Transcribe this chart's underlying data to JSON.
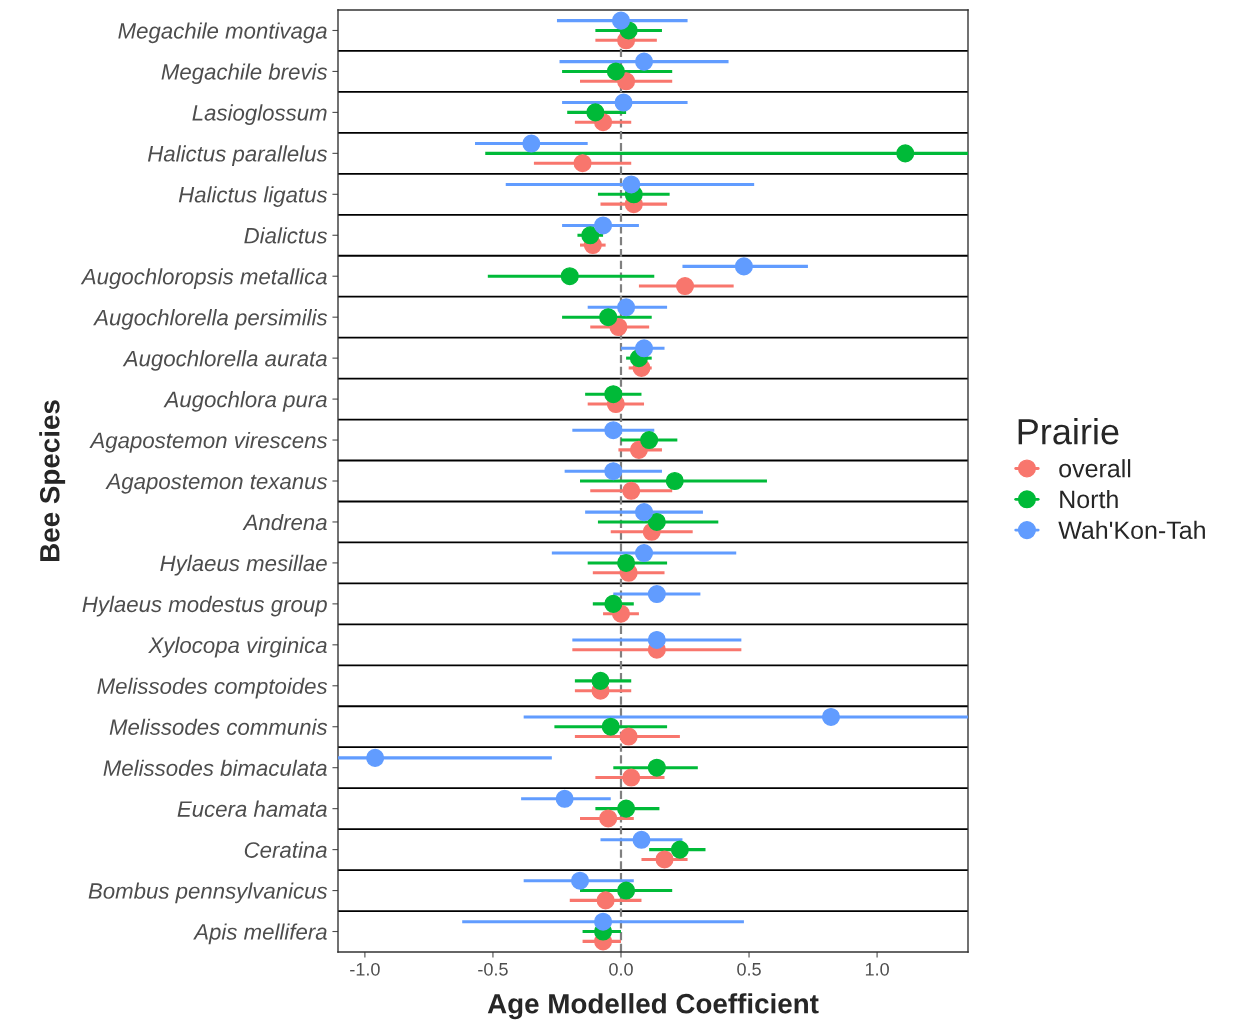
{
  "chart_data": {
    "type": "scatter",
    "orientation": "horizontal",
    "xlabel": "Age Modelled Coefficient",
    "ylabel": "Bee Species",
    "legend_title": "Prairie",
    "legend": "right",
    "marker": "circle",
    "categories": [
      "Megachile montivaga",
      "Megachile brevis",
      "Lasioglossum",
      "Halictus parallelus",
      "Halictus ligatus",
      "Dialictus",
      "Augochloropsis metallica",
      "Augochlorella persimilis",
      "Augochlorella aurata",
      "Augochlora pura",
      "Agapostemon virescens",
      "Agapostemon texanus",
      "Andrena",
      "Hylaeus mesillae",
      "Hylaeus modestus group",
      "Xylocopa virginica",
      "Melissodes comptoides",
      "Melissodes communis",
      "Melissodes bimaculata",
      "Eucera hamata",
      "Ceratina",
      "Bombus pennsylvanicus",
      "Apis mellifera"
    ],
    "xlim": [
      -1.105,
      1.355
    ],
    "xticks": [
      {
        "value": -1.0,
        "label": "-1.0"
      },
      {
        "value": -0.5,
        "label": "-0.5"
      },
      {
        "value": 0.0,
        "label": "0.0"
      },
      {
        "value": 0.5,
        "label": "0.5"
      },
      {
        "value": 1.0,
        "label": "1.0"
      }
    ],
    "ref_lines": [
      {
        "axis": "x",
        "value": 0,
        "color": "#808080",
        "line_style": "dashed"
      }
    ],
    "series": [
      {
        "name": "overall",
        "color": "#f8766d",
        "values": [
          0.02,
          0.02,
          -0.07,
          -0.15,
          0.05,
          -0.11,
          0.25,
          -0.01,
          0.08,
          -0.02,
          0.07,
          0.04,
          0.12,
          0.03,
          0.0,
          0.14,
          -0.08,
          0.03,
          0.04,
          -0.05,
          0.17,
          -0.06,
          -0.07
        ],
        "errors": [
          [
            -0.1,
            0.14
          ],
          [
            -0.16,
            0.2
          ],
          [
            -0.18,
            0.04
          ],
          [
            -0.34,
            0.04
          ],
          [
            -0.08,
            0.18
          ],
          [
            -0.16,
            -0.06
          ],
          [
            0.07,
            0.44
          ],
          [
            -0.12,
            0.11
          ],
          [
            0.03,
            0.12
          ],
          [
            -0.13,
            0.09
          ],
          [
            -0.01,
            0.16
          ],
          [
            -0.12,
            0.2
          ],
          [
            -0.04,
            0.28
          ],
          [
            -0.11,
            0.17
          ],
          [
            -0.07,
            0.07
          ],
          [
            -0.19,
            0.47
          ],
          [
            -0.18,
            0.04
          ],
          [
            -0.18,
            0.23
          ],
          [
            -0.1,
            0.17
          ],
          [
            -0.16,
            0.05
          ],
          [
            0.08,
            0.26
          ],
          [
            -0.2,
            0.08
          ],
          [
            -0.15,
            0.0
          ]
        ]
      },
      {
        "name": "North",
        "color": "#00ba38",
        "values": [
          0.03,
          -0.02,
          -0.1,
          1.11,
          0.05,
          -0.12,
          -0.2,
          -0.05,
          0.07,
          -0.03,
          0.11,
          0.21,
          0.14,
          0.02,
          -0.03,
          null,
          -0.08,
          -0.04,
          0.14,
          0.02,
          0.23,
          0.02,
          -0.07
        ],
        "errors": [
          [
            -0.1,
            0.16
          ],
          [
            -0.23,
            0.2
          ],
          [
            -0.21,
            0.02
          ],
          [
            -0.53,
            1.355
          ],
          [
            -0.09,
            0.19
          ],
          [
            -0.17,
            -0.07
          ],
          [
            -0.52,
            0.13
          ],
          [
            -0.23,
            0.12
          ],
          [
            0.02,
            0.12
          ],
          [
            -0.14,
            0.08
          ],
          [
            0.0,
            0.22
          ],
          [
            -0.16,
            0.57
          ],
          [
            -0.09,
            0.38
          ],
          [
            -0.13,
            0.18
          ],
          [
            -0.11,
            0.05
          ],
          null,
          [
            -0.18,
            0.04
          ],
          [
            -0.26,
            0.18
          ],
          [
            -0.03,
            0.3
          ],
          [
            -0.1,
            0.15
          ],
          [
            0.11,
            0.33
          ],
          [
            -0.16,
            0.2
          ],
          [
            -0.15,
            0.0
          ]
        ]
      },
      {
        "name": "Wah'Kon-Tah",
        "color": "#619cff",
        "values": [
          0.0,
          0.09,
          0.01,
          -0.35,
          0.04,
          -0.07,
          0.48,
          0.02,
          0.09,
          null,
          -0.03,
          -0.03,
          0.09,
          0.09,
          0.14,
          0.14,
          null,
          0.82,
          -0.96,
          -0.22,
          0.08,
          -0.16,
          -0.07
        ],
        "errors": [
          [
            -0.25,
            0.26
          ],
          [
            -0.24,
            0.42
          ],
          [
            -0.23,
            0.26
          ],
          [
            -0.57,
            -0.13
          ],
          [
            -0.45,
            0.52
          ],
          [
            -0.23,
            0.07
          ],
          [
            0.24,
            0.73
          ],
          [
            -0.13,
            0.18
          ],
          [
            0.0,
            0.17
          ],
          null,
          [
            -0.19,
            0.13
          ],
          [
            -0.22,
            0.16
          ],
          [
            -0.14,
            0.32
          ],
          [
            -0.27,
            0.45
          ],
          [
            -0.03,
            0.31
          ],
          [
            -0.19,
            0.47
          ],
          null,
          [
            -0.38,
            1.355
          ],
          [
            -1.105,
            -0.27
          ],
          [
            -0.39,
            -0.04
          ],
          [
            -0.08,
            0.24
          ],
          [
            -0.38,
            0.05
          ],
          [
            -0.62,
            0.48
          ]
        ]
      }
    ]
  }
}
